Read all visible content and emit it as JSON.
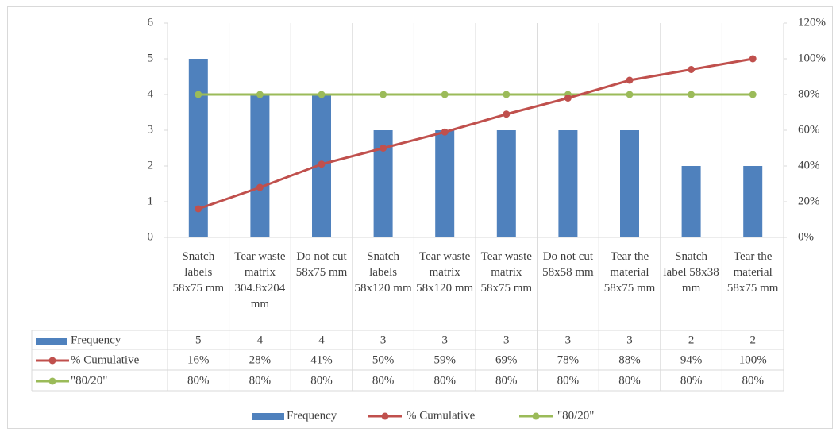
{
  "chart_data": {
    "type": "pareto",
    "categories": [
      "Snatch labels 58x75 mm",
      "Tear waste matrix 304.8x204 mm",
      "Do not cut 58x75 mm",
      "Snatch labels 58x120 mm",
      "Tear waste matrix 58x120 mm",
      "Tear waste matrix 58x75 mm",
      "Do not cut 58x58 mm",
      "Tear the material 58x75 mm",
      "Snatch label 58x38 mm",
      "Tear the material 58x75 mm"
    ],
    "series": [
      {
        "name": "Frequency",
        "type": "bar",
        "color": "#4f81bd",
        "values": [
          5,
          4,
          4,
          3,
          3,
          3,
          3,
          3,
          2,
          2
        ]
      },
      {
        "name": "% Cumulative",
        "type": "line",
        "axis": "y2",
        "color": "#c0504d",
        "values": [
          16,
          28,
          41,
          50,
          59,
          69,
          78,
          88,
          94,
          100
        ],
        "value_labels": [
          "16%",
          "28%",
          "41%",
          "50%",
          "59%",
          "69%",
          "78%",
          "88%",
          "94%",
          "100%"
        ]
      },
      {
        "name": "\"80/20\"",
        "type": "line",
        "axis": "y2",
        "color": "#9bbb59",
        "values": [
          80,
          80,
          80,
          80,
          80,
          80,
          80,
          80,
          80,
          80
        ],
        "value_labels": [
          "80%",
          "80%",
          "80%",
          "80%",
          "80%",
          "80%",
          "80%",
          "80%",
          "80%",
          "80%"
        ]
      }
    ],
    "ylim": [
      0,
      6
    ],
    "yticks": [
      0,
      1,
      2,
      3,
      4,
      5,
      6
    ],
    "y2lim": [
      0,
      120
    ],
    "y2ticks": [
      {
        "value": 0,
        "label": "0%"
      },
      {
        "value": 20,
        "label": "20%"
      },
      {
        "value": 40,
        "label": "40%"
      },
      {
        "value": 60,
        "label": "60%"
      },
      {
        "value": 80,
        "label": "80%"
      },
      {
        "value": 100,
        "label": "100%"
      },
      {
        "value": 120,
        "label": "120%"
      }
    ],
    "legend": "bottom",
    "data_table": true
  }
}
